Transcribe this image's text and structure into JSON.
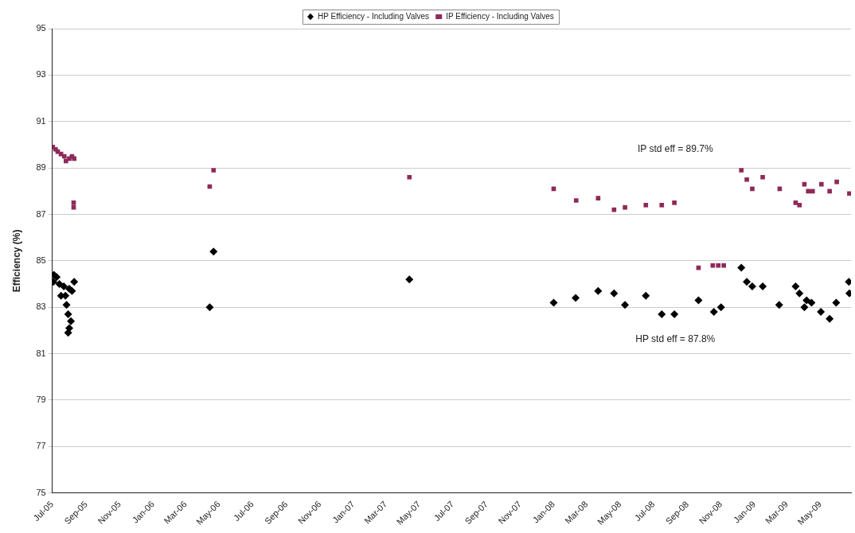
{
  "chart_data": {
    "type": "scatter",
    "ylabel": "Efficiency (%)",
    "xlim": [
      "2005-07-01",
      "2009-06-26"
    ],
    "xticks": [
      {
        "value": "2005-07-01",
        "label": "Jul-05"
      },
      {
        "value": "2005-09-01",
        "label": "Sep-05"
      },
      {
        "value": "2005-11-01",
        "label": "Nov-05"
      },
      {
        "value": "2006-01-01",
        "label": "Jan-06"
      },
      {
        "value": "2006-03-01",
        "label": "Mar-06"
      },
      {
        "value": "2006-05-01",
        "label": "May-06"
      },
      {
        "value": "2006-07-01",
        "label": "Jul-06"
      },
      {
        "value": "2006-09-01",
        "label": "Sep-06"
      },
      {
        "value": "2006-11-01",
        "label": "Nov-06"
      },
      {
        "value": "2007-01-01",
        "label": "Jan-07"
      },
      {
        "value": "2007-03-01",
        "label": "Mar-07"
      },
      {
        "value": "2007-05-01",
        "label": "May-07"
      },
      {
        "value": "2007-07-01",
        "label": "Jul-07"
      },
      {
        "value": "2007-09-01",
        "label": "Sep-07"
      },
      {
        "value": "2007-11-01",
        "label": "Nov-07"
      },
      {
        "value": "2008-01-01",
        "label": "Jan-08"
      },
      {
        "value": "2008-03-01",
        "label": "Mar-08"
      },
      {
        "value": "2008-05-01",
        "label": "May-08"
      },
      {
        "value": "2008-07-01",
        "label": "Jul-08"
      },
      {
        "value": "2008-09-01",
        "label": "Sep-08"
      },
      {
        "value": "2008-11-01",
        "label": "Nov-08"
      },
      {
        "value": "2009-01-01",
        "label": "Jan-09"
      },
      {
        "value": "2009-03-01",
        "label": "Mar-09"
      },
      {
        "value": "2009-05-01",
        "label": "May-09"
      }
    ],
    "ylim": [
      75,
      95
    ],
    "yticks": [
      75,
      77,
      79,
      81,
      83,
      85,
      87,
      89,
      91,
      93,
      95
    ],
    "grid": "y",
    "legend": "top",
    "annotations": [
      "IP std eff = 89.7%",
      "HP std eff = 87.8%"
    ],
    "series": [
      {
        "name": "HP Efficiency - Including Valves",
        "color": "#000000",
        "marker": "diamond",
        "x": [
          "2005-07-04",
          "2005-07-09",
          "2005-07-03",
          "2005-07-14",
          "2005-07-22",
          "2005-07-17",
          "2005-07-25",
          "2005-08-01",
          "2005-07-27",
          "2005-07-30",
          "2005-08-04",
          "2005-08-01",
          "2005-07-30",
          "2005-08-10",
          "2005-08-06",
          "2006-04-14",
          "2006-04-21",
          "2007-04-13",
          "2008-01-01",
          "2008-02-10",
          "2008-03-22",
          "2008-04-20",
          "2008-05-10",
          "2008-06-17",
          "2008-07-16",
          "2008-08-08",
          "2008-09-21",
          "2008-10-19",
          "2008-11-01",
          "2008-12-08",
          "2008-12-18",
          "2008-12-28",
          "2009-01-16",
          "2009-02-15",
          "2009-03-17",
          "2009-03-24",
          "2009-04-02",
          "2009-04-06",
          "2009-04-15",
          "2009-05-02",
          "2009-05-18",
          "2009-05-30",
          "2009-06-22",
          "2009-06-23"
        ],
        "values": [
          84.4,
          84.3,
          84.1,
          84.0,
          83.9,
          83.5,
          83.5,
          83.8,
          83.1,
          82.7,
          82.4,
          82.1,
          81.9,
          84.1,
          83.7,
          83.0,
          85.4,
          84.2,
          83.2,
          83.4,
          83.7,
          83.6,
          83.1,
          83.5,
          82.7,
          82.7,
          83.3,
          82.8,
          83.0,
          84.7,
          84.1,
          83.9,
          83.9,
          83.1,
          83.9,
          83.6,
          83.0,
          83.3,
          83.2,
          82.8,
          82.5,
          83.2,
          84.1,
          83.6
        ]
      },
      {
        "name": "IP Efficiency - Including Valves",
        "color": "#8e2a5a",
        "marker": "square",
        "x": [
          "2005-07-02",
          "2005-07-07",
          "2005-07-11",
          "2005-07-17",
          "2005-07-23",
          "2005-07-26",
          "2005-08-01",
          "2005-08-06",
          "2005-08-10",
          "2005-08-09",
          "2005-08-09",
          "2006-04-14",
          "2006-04-21",
          "2007-04-13",
          "2008-01-01",
          "2008-02-11",
          "2008-03-22",
          "2008-04-20",
          "2008-05-10",
          "2008-06-17",
          "2008-07-16",
          "2008-08-08",
          "2008-09-21",
          "2008-10-17",
          "2008-10-27",
          "2008-11-06",
          "2008-12-08",
          "2008-12-18",
          "2008-12-28",
          "2009-01-16",
          "2009-02-16",
          "2009-03-17",
          "2009-03-24",
          "2009-04-02",
          "2009-04-09",
          "2009-04-17",
          "2009-05-03",
          "2009-05-18",
          "2009-05-31",
          "2009-06-23"
        ],
        "values": [
          89.9,
          89.8,
          89.7,
          89.6,
          89.5,
          89.3,
          89.4,
          89.5,
          89.4,
          87.5,
          87.3,
          88.2,
          88.9,
          88.6,
          88.1,
          87.6,
          87.7,
          87.2,
          87.3,
          87.4,
          87.4,
          87.5,
          84.7,
          84.8,
          84.8,
          84.8,
          88.9,
          88.5,
          88.1,
          88.6,
          88.1,
          87.5,
          87.4,
          88.3,
          88.0,
          88.0,
          88.3,
          88.0,
          88.4,
          87.9
        ]
      }
    ]
  }
}
